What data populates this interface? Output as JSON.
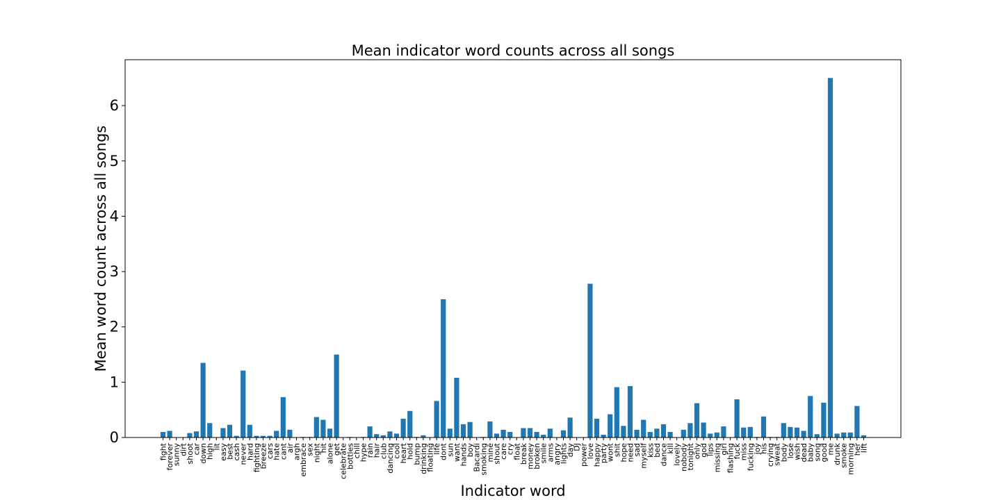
{
  "chart_data": {
    "type": "bar",
    "title": "Mean indicator word counts across all songs",
    "xlabel": "Indicator word",
    "ylabel": "Mean word count across all songs",
    "ylim": [
      0,
      6.83
    ],
    "yticks": [
      0,
      1,
      2,
      3,
      4,
      5,
      6
    ],
    "grid": false,
    "bar_color": "#1f77b4",
    "categories": [
      "fight",
      "forever",
      "sunny",
      "dirt",
      "shoot",
      "car",
      "down",
      "high",
      "lit",
      "easy",
      "best",
      "cash",
      "never",
      "hard",
      "fighting",
      "breeze",
      "cars",
      "hate",
      "cant",
      "air",
      "argh",
      "embrace",
      "sex",
      "night",
      "hit",
      "alone",
      "get",
      "celebrate",
      "bottles",
      "chill",
      "hype",
      "rain",
      "hair",
      "club",
      "dancing",
      "cool",
      "heart",
      "hold",
      "bump",
      "drinking",
      "floating",
      "life",
      "dont",
      "sun",
      "want",
      "hands",
      "boy",
      "Bacardi",
      "smoking",
      "mine",
      "shout",
      "care",
      "cry",
      "float",
      "break",
      "money",
      "broken",
      "smile",
      "arms",
      "angry",
      "lights",
      "day",
      "DJ",
      "power",
      "love",
      "happy",
      "party",
      "wont",
      "shit",
      "hope",
      "need",
      "sad",
      "myself",
      "kiss",
      "bed",
      "dance",
      "kill",
      "lovely",
      "nobody",
      "tonight",
      "only",
      "god",
      "lips",
      "missing",
      "girl",
      "flashing",
      "fuck",
      "miss",
      "fucking",
      "joy",
      "his",
      "crying",
      "sweat",
      "body",
      "lose",
      "wish",
      "dead",
      "baby",
      "song",
      "good",
      "me",
      "drunk",
      "smoke",
      "morning",
      "her",
      "lift"
    ],
    "values": [
      0.1,
      0.12,
      0.0,
      0.0,
      0.08,
      0.11,
      1.35,
      0.26,
      0.0,
      0.17,
      0.23,
      0.03,
      1.21,
      0.23,
      0.03,
      0.03,
      0.03,
      0.12,
      0.73,
      0.14,
      0.0,
      0.01,
      0.01,
      0.37,
      0.32,
      0.16,
      1.5,
      0.0,
      0.01,
      0.0,
      0.01,
      0.2,
      0.06,
      0.04,
      0.11,
      0.07,
      0.34,
      0.48,
      0.01,
      0.04,
      0.0,
      0.66,
      2.5,
      0.16,
      1.08,
      0.24,
      0.28,
      0.0,
      0.01,
      0.29,
      0.07,
      0.14,
      0.1,
      0.0,
      0.17,
      0.17,
      0.1,
      0.05,
      0.16,
      0.0,
      0.13,
      0.36,
      0.0,
      0.0,
      2.78,
      0.34,
      0.05,
      0.42,
      0.91,
      0.21,
      0.93,
      0.14,
      0.32,
      0.1,
      0.16,
      0.24,
      0.1,
      0.0,
      0.14,
      0.26,
      0.62,
      0.27,
      0.07,
      0.09,
      0.2,
      0.0,
      0.69,
      0.18,
      0.19,
      0.01,
      0.38,
      0.01,
      0.01,
      0.26,
      0.19,
      0.18,
      0.12,
      0.75,
      0.06,
      0.63,
      6.5,
      0.07,
      0.09,
      0.09,
      0.57,
      0.04
    ]
  }
}
